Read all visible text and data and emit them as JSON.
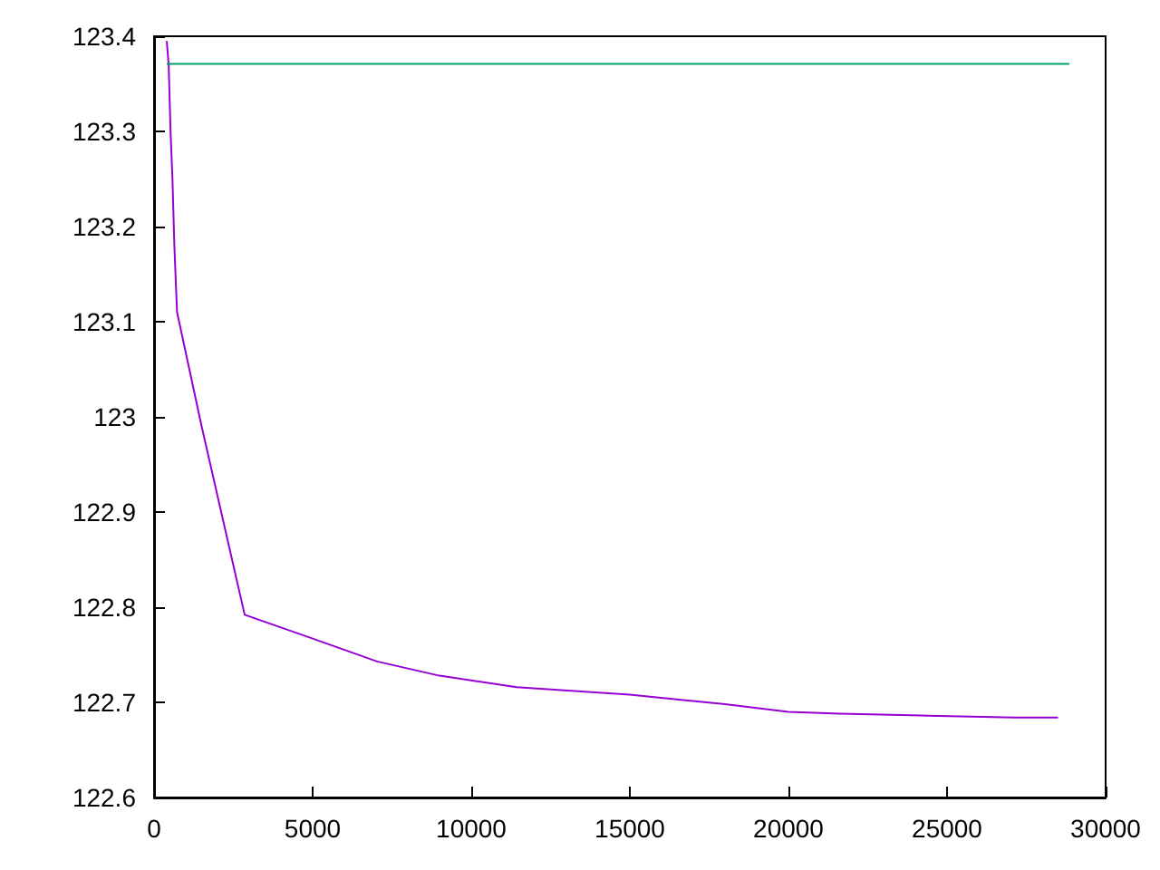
{
  "chart_data": {
    "type": "line",
    "xlim": [
      0,
      30000
    ],
    "xticks": [
      0,
      5000,
      10000,
      15000,
      20000,
      25000,
      30000
    ],
    "ylim": [
      122.6,
      123.4
    ],
    "yticks": [
      122.6,
      122.7,
      122.8,
      122.9,
      123,
      123.1,
      123.2,
      123.3,
      123.4
    ],
    "grid": false,
    "marker": "none",
    "line_style": "solid",
    "series": [
      {
        "color": "#9400d3",
        "x": [
          400,
          460,
          520,
          580,
          640,
          700,
          725,
          1500,
          2857,
          5000,
          7030,
          9000,
          11430,
          15000,
          18000,
          20000,
          21600,
          24400,
          27140,
          28500
        ],
        "values": [
          123.395,
          123.37,
          123.3,
          123.25,
          123.18,
          123.13,
          123.11,
          122.99,
          122.792,
          122.767,
          122.743,
          122.728,
          122.716,
          122.708,
          122.698,
          122.69,
          122.688,
          122.686,
          122.684,
          122.684
        ]
      },
      {
        "color": "#009e73",
        "x": [
          400,
          28860
        ],
        "values": [
          123.371,
          123.371
        ]
      }
    ]
  }
}
